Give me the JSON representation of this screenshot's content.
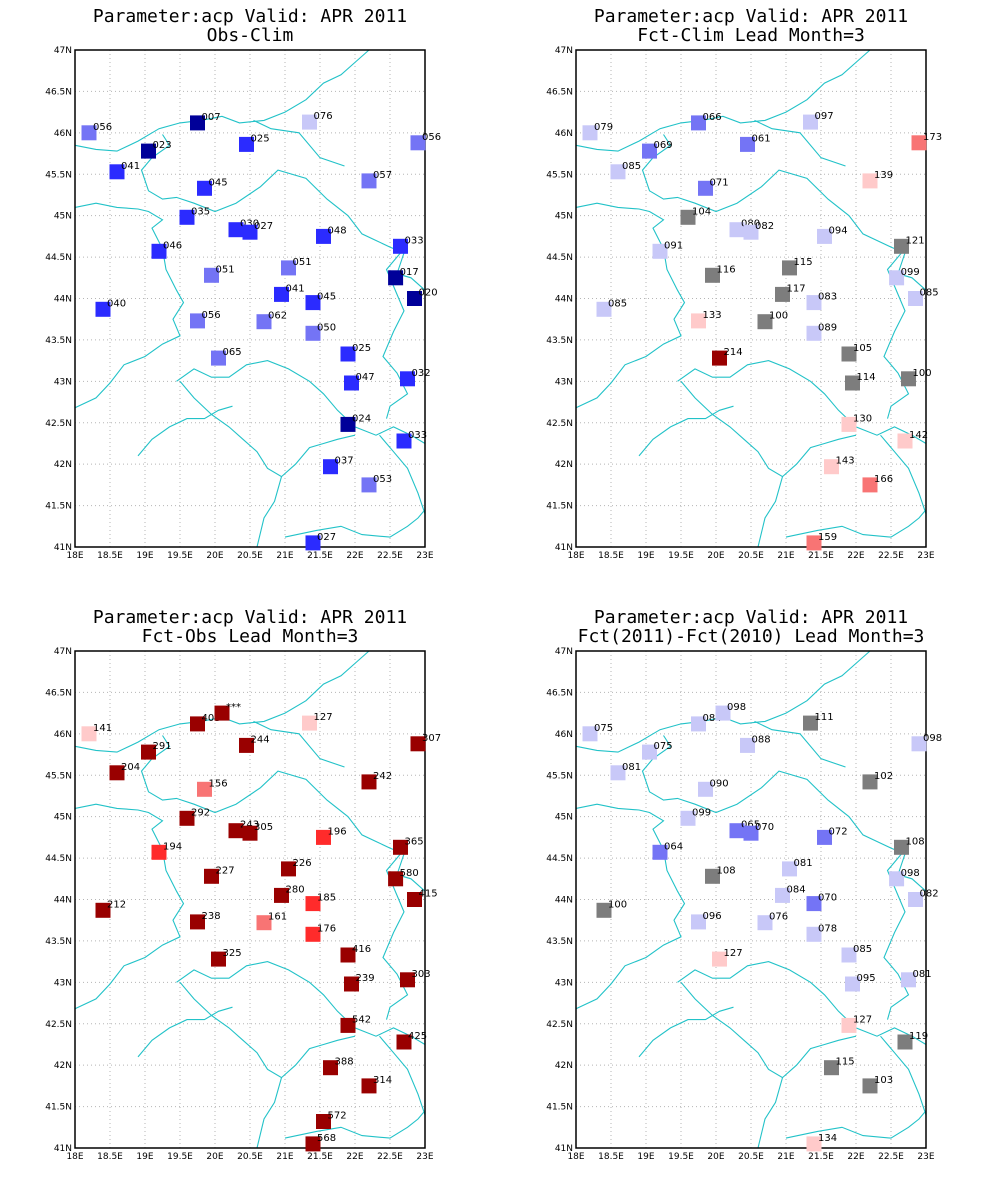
{
  "colors": {
    "border": "#22c2c8",
    "grid": "#b5b5b5",
    "frame": "#000000"
  },
  "palette": {
    "b1": "#000099",
    "b2": "#2b2bff",
    "b3": "#7474f5",
    "b4": "#c8c8f8",
    "g": "#7d7d7d",
    "p1": "#ffcaca",
    "p2": "#f87474",
    "r1": "#ff2b2b",
    "r2": "#990000"
  },
  "axes": {
    "lon_ticks": [
      18,
      18.5,
      19,
      19.5,
      20,
      20.5,
      21,
      21.5,
      22,
      22.5,
      23
    ],
    "lat_ticks": [
      41,
      41.5,
      42,
      42.5,
      43,
      43.5,
      44,
      44.5,
      45,
      45.5,
      46,
      46.5,
      47
    ],
    "lon_labels": [
      "18E",
      "18.5E",
      "19E",
      "19.5E",
      "20E",
      "20.5E",
      "21E",
      "21.5E",
      "22E",
      "22.5E",
      "23E"
    ],
    "lat_labels": [
      "41N",
      "41.5N",
      "42N",
      "42.5N",
      "43N",
      "43.5N",
      "44N",
      "44.5N",
      "45N",
      "45.5N",
      "46N",
      "46.5N",
      "47N"
    ],
    "lon_range": [
      18,
      23
    ],
    "lat_range": [
      41,
      47
    ]
  },
  "panels": [
    {
      "title_line1": "Parameter:acp Valid: APR 2011",
      "title_line2": "Obs-Clim",
      "stations": [
        {
          "lon": 18.2,
          "lat": 46.0,
          "label": "056",
          "color": "b3"
        },
        {
          "lon": 19.05,
          "lat": 45.78,
          "label": "023",
          "color": "b1"
        },
        {
          "lon": 18.6,
          "lat": 45.53,
          "label": "041",
          "color": "b2"
        },
        {
          "lon": 19.75,
          "lat": 46.12,
          "label": "007",
          "color": "b1"
        },
        {
          "lon": 20.45,
          "lat": 45.86,
          "label": "025",
          "color": "b2"
        },
        {
          "lon": 21.35,
          "lat": 46.13,
          "label": "076",
          "color": "b4"
        },
        {
          "lon": 22.9,
          "lat": 45.88,
          "label": "056",
          "color": "b3"
        },
        {
          "lon": 19.85,
          "lat": 45.33,
          "label": "045",
          "color": "b2"
        },
        {
          "lon": 22.2,
          "lat": 45.42,
          "label": "057",
          "color": "b3"
        },
        {
          "lon": 19.6,
          "lat": 44.98,
          "label": "035",
          "color": "b2"
        },
        {
          "lon": 20.3,
          "lat": 44.83,
          "label": "030",
          "color": "b2"
        },
        {
          "lon": 20.5,
          "lat": 44.8,
          "label": "027",
          "color": "b2"
        },
        {
          "lon": 21.55,
          "lat": 44.75,
          "label": "048",
          "color": "b2"
        },
        {
          "lon": 22.65,
          "lat": 44.63,
          "label": "033",
          "color": "b2"
        },
        {
          "lon": 19.2,
          "lat": 44.57,
          "label": "046",
          "color": "b2"
        },
        {
          "lon": 19.95,
          "lat": 44.28,
          "label": "051",
          "color": "b3"
        },
        {
          "lon": 21.05,
          "lat": 44.37,
          "label": "051",
          "color": "b3"
        },
        {
          "lon": 22.58,
          "lat": 44.25,
          "label": "017",
          "color": "b1"
        },
        {
          "lon": 18.4,
          "lat": 43.87,
          "label": "040",
          "color": "b2"
        },
        {
          "lon": 20.95,
          "lat": 44.05,
          "label": "041",
          "color": "b2"
        },
        {
          "lon": 21.4,
          "lat": 43.95,
          "label": "045",
          "color": "b2"
        },
        {
          "lon": 22.85,
          "lat": 44.0,
          "label": "020",
          "color": "b1"
        },
        {
          "lon": 19.75,
          "lat": 43.73,
          "label": "056",
          "color": "b3"
        },
        {
          "lon": 20.7,
          "lat": 43.72,
          "label": "062",
          "color": "b3"
        },
        {
          "lon": 21.4,
          "lat": 43.58,
          "label": "050",
          "color": "b3"
        },
        {
          "lon": 20.05,
          "lat": 43.28,
          "label": "065",
          "color": "b3"
        },
        {
          "lon": 21.9,
          "lat": 43.33,
          "label": "025",
          "color": "b2"
        },
        {
          "lon": 21.95,
          "lat": 42.98,
          "label": "047",
          "color": "b2"
        },
        {
          "lon": 22.75,
          "lat": 43.03,
          "label": "032",
          "color": "b2"
        },
        {
          "lon": 21.9,
          "lat": 42.48,
          "label": "024",
          "color": "b1"
        },
        {
          "lon": 22.7,
          "lat": 42.28,
          "label": "033",
          "color": "b2"
        },
        {
          "lon": 21.65,
          "lat": 41.97,
          "label": "037",
          "color": "b2"
        },
        {
          "lon": 22.2,
          "lat": 41.75,
          "label": "053",
          "color": "b3"
        },
        {
          "lon": 21.4,
          "lat": 41.05,
          "label": "027",
          "color": "b2"
        }
      ]
    },
    {
      "title_line1": "Parameter:acp Valid: APR 2011",
      "title_line2": "Fct-Clim Lead Month=3",
      "stations": [
        {
          "lon": 18.2,
          "lat": 46.0,
          "label": "079",
          "color": "b4"
        },
        {
          "lon": 19.05,
          "lat": 45.78,
          "label": "069",
          "color": "b3"
        },
        {
          "lon": 18.6,
          "lat": 45.53,
          "label": "085",
          "color": "b4"
        },
        {
          "lon": 19.75,
          "lat": 46.12,
          "label": "066",
          "color": "b3"
        },
        {
          "lon": 20.45,
          "lat": 45.86,
          "label": "061",
          "color": "b3"
        },
        {
          "lon": 21.35,
          "lat": 46.13,
          "label": "097",
          "color": "b4"
        },
        {
          "lon": 22.9,
          "lat": 45.88,
          "label": "173",
          "color": "p2"
        },
        {
          "lon": 19.85,
          "lat": 45.33,
          "label": "071",
          "color": "b3"
        },
        {
          "lon": 22.2,
          "lat": 45.42,
          "label": "139",
          "color": "p1"
        },
        {
          "lon": 19.6,
          "lat": 44.98,
          "label": "104",
          "color": "g"
        },
        {
          "lon": 20.3,
          "lat": 44.83,
          "label": "080",
          "color": "b4"
        },
        {
          "lon": 20.5,
          "lat": 44.8,
          "label": "082",
          "color": "b4"
        },
        {
          "lon": 21.55,
          "lat": 44.75,
          "label": "094",
          "color": "b4"
        },
        {
          "lon": 22.65,
          "lat": 44.63,
          "label": "121",
          "color": "g"
        },
        {
          "lon": 19.2,
          "lat": 44.57,
          "label": "091",
          "color": "b4"
        },
        {
          "lon": 19.95,
          "lat": 44.28,
          "label": "116",
          "color": "g"
        },
        {
          "lon": 21.05,
          "lat": 44.37,
          "label": "115",
          "color": "g"
        },
        {
          "lon": 22.58,
          "lat": 44.25,
          "label": "099",
          "color": "b4"
        },
        {
          "lon": 18.4,
          "lat": 43.87,
          "label": "085",
          "color": "b4"
        },
        {
          "lon": 20.95,
          "lat": 44.05,
          "label": "117",
          "color": "g"
        },
        {
          "lon": 21.4,
          "lat": 43.95,
          "label": "083",
          "color": "b4"
        },
        {
          "lon": 22.85,
          "lat": 44.0,
          "label": "085",
          "color": "b4"
        },
        {
          "lon": 19.75,
          "lat": 43.73,
          "label": "133",
          "color": "p1"
        },
        {
          "lon": 20.7,
          "lat": 43.72,
          "label": "100",
          "color": "g"
        },
        {
          "lon": 21.4,
          "lat": 43.58,
          "label": "089",
          "color": "b4"
        },
        {
          "lon": 20.05,
          "lat": 43.28,
          "label": "214",
          "color": "r2"
        },
        {
          "lon": 21.9,
          "lat": 43.33,
          "label": "105",
          "color": "g"
        },
        {
          "lon": 21.95,
          "lat": 42.98,
          "label": "114",
          "color": "g"
        },
        {
          "lon": 22.75,
          "lat": 43.03,
          "label": "100",
          "color": "g"
        },
        {
          "lon": 21.9,
          "lat": 42.48,
          "label": "130",
          "color": "p1"
        },
        {
          "lon": 22.7,
          "lat": 42.28,
          "label": "142",
          "color": "p1"
        },
        {
          "lon": 21.65,
          "lat": 41.97,
          "label": "143",
          "color": "p1"
        },
        {
          "lon": 22.2,
          "lat": 41.75,
          "label": "166",
          "color": "p2"
        },
        {
          "lon": 21.4,
          "lat": 41.05,
          "label": "159",
          "color": "p2"
        }
      ]
    },
    {
      "title_line1": "Parameter:acp Valid: APR 2011",
      "title_line2": "Fct-Obs Lead Month=3",
      "stations": [
        {
          "lon": 18.2,
          "lat": 46.0,
          "label": "141",
          "color": "p1"
        },
        {
          "lon": 19.05,
          "lat": 45.78,
          "label": "291",
          "color": "r2"
        },
        {
          "lon": 18.6,
          "lat": 45.53,
          "label": "204",
          "color": "r2"
        },
        {
          "lon": 19.75,
          "lat": 46.12,
          "label": "403",
          "color": "r2"
        },
        {
          "lon": 20.1,
          "lat": 46.25,
          "label": "***",
          "color": "r2"
        },
        {
          "lon": 20.45,
          "lat": 45.86,
          "label": "244",
          "color": "r2"
        },
        {
          "lon": 21.35,
          "lat": 46.13,
          "label": "127",
          "color": "p1"
        },
        {
          "lon": 22.9,
          "lat": 45.88,
          "label": "307",
          "color": "r2"
        },
        {
          "lon": 19.85,
          "lat": 45.33,
          "label": "156",
          "color": "p2"
        },
        {
          "lon": 22.2,
          "lat": 45.42,
          "label": "242",
          "color": "r2"
        },
        {
          "lon": 19.6,
          "lat": 44.98,
          "label": "292",
          "color": "r2"
        },
        {
          "lon": 20.3,
          "lat": 44.83,
          "label": "243",
          "color": "r2"
        },
        {
          "lon": 20.5,
          "lat": 44.8,
          "label": "305",
          "color": "r2"
        },
        {
          "lon": 21.55,
          "lat": 44.75,
          "label": "196",
          "color": "r1"
        },
        {
          "lon": 22.65,
          "lat": 44.63,
          "label": "365",
          "color": "r2"
        },
        {
          "lon": 19.2,
          "lat": 44.57,
          "label": "194",
          "color": "r1"
        },
        {
          "lon": 19.95,
          "lat": 44.28,
          "label": "227",
          "color": "r2"
        },
        {
          "lon": 21.05,
          "lat": 44.37,
          "label": "226",
          "color": "r2"
        },
        {
          "lon": 22.58,
          "lat": 44.25,
          "label": "580",
          "color": "r2"
        },
        {
          "lon": 18.4,
          "lat": 43.87,
          "label": "212",
          "color": "r2"
        },
        {
          "lon": 20.95,
          "lat": 44.05,
          "label": "280",
          "color": "r2"
        },
        {
          "lon": 21.4,
          "lat": 43.95,
          "label": "185",
          "color": "r1"
        },
        {
          "lon": 22.85,
          "lat": 44.0,
          "label": "415",
          "color": "r2"
        },
        {
          "lon": 19.75,
          "lat": 43.73,
          "label": "238",
          "color": "r2"
        },
        {
          "lon": 20.7,
          "lat": 43.72,
          "label": "161",
          "color": "p2"
        },
        {
          "lon": 21.4,
          "lat": 43.58,
          "label": "176",
          "color": "r1"
        },
        {
          "lon": 20.05,
          "lat": 43.28,
          "label": "325",
          "color": "r2"
        },
        {
          "lon": 21.9,
          "lat": 43.33,
          "label": "416",
          "color": "r2"
        },
        {
          "lon": 21.95,
          "lat": 42.98,
          "label": "239",
          "color": "r2"
        },
        {
          "lon": 22.75,
          "lat": 43.03,
          "label": "303",
          "color": "r2"
        },
        {
          "lon": 21.9,
          "lat": 42.48,
          "label": "542",
          "color": "r2"
        },
        {
          "lon": 22.7,
          "lat": 42.28,
          "label": "425",
          "color": "r2"
        },
        {
          "lon": 21.65,
          "lat": 41.97,
          "label": "388",
          "color": "r2"
        },
        {
          "lon": 22.2,
          "lat": 41.75,
          "label": "314",
          "color": "r2"
        },
        {
          "lon": 21.55,
          "lat": 41.32,
          "label": "572",
          "color": "r2"
        },
        {
          "lon": 21.4,
          "lat": 41.05,
          "label": "568",
          "color": "r2"
        }
      ]
    },
    {
      "title_line1": "Parameter:acp Valid: APR 2011",
      "title_line2": "Fct(2011)-Fct(2010) Lead Month=3",
      "stations": [
        {
          "lon": 18.2,
          "lat": 46.0,
          "label": "075",
          "color": "b4"
        },
        {
          "lon": 19.05,
          "lat": 45.78,
          "label": "075",
          "color": "b4"
        },
        {
          "lon": 18.6,
          "lat": 45.53,
          "label": "081",
          "color": "b4"
        },
        {
          "lon": 19.75,
          "lat": 46.12,
          "label": "084",
          "color": "b4"
        },
        {
          "lon": 20.1,
          "lat": 46.25,
          "label": "098",
          "color": "b4"
        },
        {
          "lon": 20.45,
          "lat": 45.86,
          "label": "088",
          "color": "b4"
        },
        {
          "lon": 21.35,
          "lat": 46.13,
          "label": "111",
          "color": "g"
        },
        {
          "lon": 22.9,
          "lat": 45.88,
          "label": "098",
          "color": "b4"
        },
        {
          "lon": 19.85,
          "lat": 45.33,
          "label": "090",
          "color": "b4"
        },
        {
          "lon": 22.2,
          "lat": 45.42,
          "label": "102",
          "color": "g"
        },
        {
          "lon": 19.6,
          "lat": 44.98,
          "label": "099",
          "color": "b4"
        },
        {
          "lon": 20.3,
          "lat": 44.83,
          "label": "065",
          "color": "b3"
        },
        {
          "lon": 20.5,
          "lat": 44.8,
          "label": "070",
          "color": "b3"
        },
        {
          "lon": 21.55,
          "lat": 44.75,
          "label": "072",
          "color": "b3"
        },
        {
          "lon": 22.65,
          "lat": 44.63,
          "label": "108",
          "color": "g"
        },
        {
          "lon": 19.2,
          "lat": 44.57,
          "label": "064",
          "color": "b3"
        },
        {
          "lon": 19.95,
          "lat": 44.28,
          "label": "108",
          "color": "g"
        },
        {
          "lon": 21.05,
          "lat": 44.37,
          "label": "081",
          "color": "b4"
        },
        {
          "lon": 22.58,
          "lat": 44.25,
          "label": "098",
          "color": "b4"
        },
        {
          "lon": 18.4,
          "lat": 43.87,
          "label": "100",
          "color": "g"
        },
        {
          "lon": 20.95,
          "lat": 44.05,
          "label": "084",
          "color": "b4"
        },
        {
          "lon": 21.4,
          "lat": 43.95,
          "label": "070",
          "color": "b3"
        },
        {
          "lon": 22.85,
          "lat": 44.0,
          "label": "082",
          "color": "b4"
        },
        {
          "lon": 19.75,
          "lat": 43.73,
          "label": "096",
          "color": "b4"
        },
        {
          "lon": 20.7,
          "lat": 43.72,
          "label": "076",
          "color": "b4"
        },
        {
          "lon": 21.4,
          "lat": 43.58,
          "label": "078",
          "color": "b4"
        },
        {
          "lon": 20.05,
          "lat": 43.28,
          "label": "127",
          "color": "p1"
        },
        {
          "lon": 21.9,
          "lat": 43.33,
          "label": "085",
          "color": "b4"
        },
        {
          "lon": 21.95,
          "lat": 42.98,
          "label": "095",
          "color": "b4"
        },
        {
          "lon": 22.75,
          "lat": 43.03,
          "label": "081",
          "color": "b4"
        },
        {
          "lon": 21.9,
          "lat": 42.48,
          "label": "127",
          "color": "p1"
        },
        {
          "lon": 22.7,
          "lat": 42.28,
          "label": "119",
          "color": "g"
        },
        {
          "lon": 21.65,
          "lat": 41.97,
          "label": "115",
          "color": "g"
        },
        {
          "lon": 22.2,
          "lat": 41.75,
          "label": "103",
          "color": "g"
        },
        {
          "lon": 21.4,
          "lat": 41.05,
          "label": "134",
          "color": "p1"
        }
      ]
    }
  ]
}
